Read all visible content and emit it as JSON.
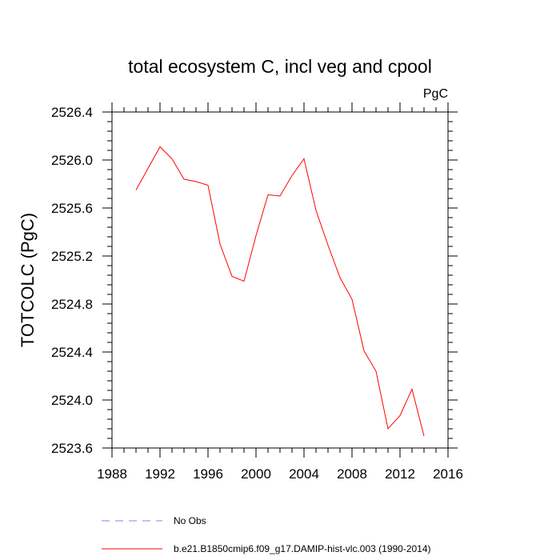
{
  "chart_data": {
    "type": "line",
    "title": "total ecosystem C, incl veg and cpool",
    "units_label": "PgC",
    "xlabel": "",
    "ylabel": "TOTCOLC  (PgC)",
    "xlim": [
      1988,
      2016
    ],
    "ylim": [
      2523.6,
      2526.4
    ],
    "x_ticks": [
      1988,
      1992,
      1996,
      2000,
      2004,
      2008,
      2012,
      2016
    ],
    "x_tick_labels": [
      "1988",
      "1992",
      "1996",
      "2000",
      "2004",
      "2008",
      "2012",
      "2016"
    ],
    "y_ticks": [
      2523.6,
      2524.0,
      2524.4,
      2524.8,
      2525.2,
      2525.6,
      2526.0,
      2526.4
    ],
    "y_tick_labels": [
      "2523.6",
      "2524.0",
      "2524.4",
      "2524.8",
      "2525.2",
      "2525.6",
      "2526.0",
      "2526.4"
    ],
    "series": [
      {
        "name": "b.e21.B1850cmip6.f09_g17.DAMIP-hist-vlc.003 (1990-2014)",
        "color": "#ff0000",
        "style": "solid",
        "x": [
          1990,
          1991,
          1992,
          1993,
          1994,
          1995,
          1996,
          1997,
          1998,
          1999,
          2000,
          2001,
          2002,
          2003,
          2004,
          2005,
          2006,
          2007,
          2008,
          2009,
          2010,
          2011,
          2012,
          2013,
          2014
        ],
        "values": [
          2525.75,
          2525.93,
          2526.11,
          2526.01,
          2525.84,
          2525.82,
          2525.79,
          2525.3,
          2525.03,
          2524.99,
          2525.37,
          2525.71,
          2525.7,
          2525.87,
          2526.01,
          2525.58,
          2525.29,
          2525.02,
          2524.84,
          2524.41,
          2524.24,
          2523.76,
          2523.87,
          2524.09,
          2523.7
        ]
      }
    ],
    "legend": [
      {
        "label": "No Obs",
        "color": "#8080ff",
        "style": "dashed"
      },
      {
        "label": "b.e21.B1850cmip6.f09_g17.DAMIP-hist-vlc.003 (1990-2014)",
        "color": "#ff0000",
        "style": "solid"
      }
    ]
  }
}
